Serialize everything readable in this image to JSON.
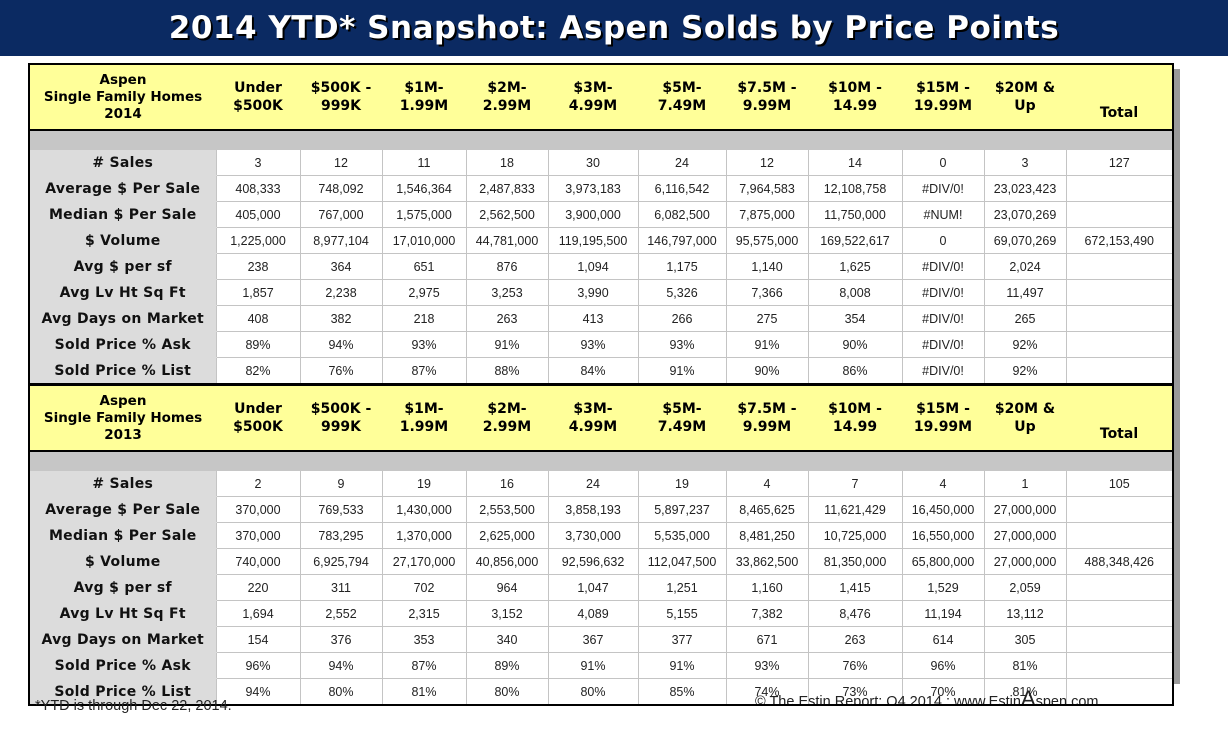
{
  "title": "2014 YTD* Snapshot: Aspen Solds by Price Points",
  "columns": [
    [
      "Under",
      "$500K"
    ],
    [
      "$500K -",
      "999K"
    ],
    [
      "$1M-",
      "1.99M"
    ],
    [
      "$2M-",
      "2.99M"
    ],
    [
      "$3M-",
      "4.99M"
    ],
    [
      "$5M-",
      "7.49M"
    ],
    [
      "$7.5M -",
      "9.99M"
    ],
    [
      "$10M -",
      "14.99"
    ],
    [
      "$15M -",
      "19.99M"
    ],
    [
      "$20M &",
      "Up"
    ],
    [
      "Total"
    ]
  ],
  "sections": [
    {
      "segment": [
        "Aspen",
        "Single Family Homes",
        "2014"
      ],
      "rows": [
        {
          "label": "# Sales",
          "values": [
            "3",
            "12",
            "11",
            "18",
            "30",
            "24",
            "12",
            "14",
            "0",
            "3",
            "127"
          ]
        },
        {
          "label": "Average $ Per Sale",
          "values": [
            "408,333",
            "748,092",
            "1,546,364",
            "2,487,833",
            "3,973,183",
            "6,116,542",
            "7,964,583",
            "12,108,758",
            "#DIV/0!",
            "23,023,423",
            ""
          ]
        },
        {
          "label": "Median $ Per Sale",
          "values": [
            "405,000",
            "767,000",
            "1,575,000",
            "2,562,500",
            "3,900,000",
            "6,082,500",
            "7,875,000",
            "11,750,000",
            "#NUM!",
            "23,070,269",
            ""
          ]
        },
        {
          "label": "$ Volume",
          "values": [
            "1,225,000",
            "8,977,104",
            "17,010,000",
            "44,781,000",
            "119,195,500",
            "146,797,000",
            "95,575,000",
            "169,522,617",
            "0",
            "69,070,269",
            "672,153,490"
          ]
        },
        {
          "label": "Avg $ per sf",
          "values": [
            "238",
            "364",
            "651",
            "876",
            "1,094",
            "1,175",
            "1,140",
            "1,625",
            "#DIV/0!",
            "2,024",
            ""
          ]
        },
        {
          "label": "Avg Lv Ht Sq Ft",
          "values": [
            "1,857",
            "2,238",
            "2,975",
            "3,253",
            "3,990",
            "5,326",
            "7,366",
            "8,008",
            "#DIV/0!",
            "11,497",
            ""
          ]
        },
        {
          "label": "Avg Days on Market",
          "values": [
            "408",
            "382",
            "218",
            "263",
            "413",
            "266",
            "275",
            "354",
            "#DIV/0!",
            "265",
            ""
          ]
        },
        {
          "label": "Sold Price % Ask",
          "values": [
            "89%",
            "94%",
            "93%",
            "91%",
            "93%",
            "93%",
            "91%",
            "90%",
            "#DIV/0!",
            "92%",
            ""
          ]
        },
        {
          "label": "Sold Price % List",
          "values": [
            "82%",
            "76%",
            "87%",
            "88%",
            "84%",
            "91%",
            "90%",
            "86%",
            "#DIV/0!",
            "92%",
            ""
          ]
        }
      ]
    },
    {
      "segment": [
        "Aspen",
        "Single Family Homes",
        "2013"
      ],
      "rows": [
        {
          "label": "# Sales",
          "values": [
            "2",
            "9",
            "19",
            "16",
            "24",
            "19",
            "4",
            "7",
            "4",
            "1",
            "105"
          ]
        },
        {
          "label": "Average $ Per Sale",
          "values": [
            "370,000",
            "769,533",
            "1,430,000",
            "2,553,500",
            "3,858,193",
            "5,897,237",
            "8,465,625",
            "11,621,429",
            "16,450,000",
            "27,000,000",
            ""
          ]
        },
        {
          "label": "Median $ Per Sale",
          "values": [
            "370,000",
            "783,295",
            "1,370,000",
            "2,625,000",
            "3,730,000",
            "5,535,000",
            "8,481,250",
            "10,725,000",
            "16,550,000",
            "27,000,000",
            ""
          ]
        },
        {
          "label": "$ Volume",
          "values": [
            "740,000",
            "6,925,794",
            "27,170,000",
            "40,856,000",
            "92,596,632",
            "112,047,500",
            "33,862,500",
            "81,350,000",
            "65,800,000",
            "27,000,000",
            "488,348,426"
          ]
        },
        {
          "label": "Avg $ per sf",
          "values": [
            "220",
            "311",
            "702",
            "964",
            "1,047",
            "1,251",
            "1,160",
            "1,415",
            "1,529",
            "2,059",
            ""
          ]
        },
        {
          "label": "Avg Lv Ht Sq Ft",
          "values": [
            "1,694",
            "2,552",
            "2,315",
            "3,152",
            "4,089",
            "5,155",
            "7,382",
            "8,476",
            "11,194",
            "13,112",
            ""
          ]
        },
        {
          "label": "Avg Days on Market",
          "values": [
            "154",
            "376",
            "353",
            "340",
            "367",
            "377",
            "671",
            "263",
            "614",
            "305",
            ""
          ]
        },
        {
          "label": "Sold Price % Ask",
          "values": [
            "96%",
            "94%",
            "87%",
            "89%",
            "91%",
            "91%",
            "93%",
            "76%",
            "96%",
            "81%",
            ""
          ]
        },
        {
          "label": "Sold Price % List",
          "values": [
            "94%",
            "80%",
            "81%",
            "80%",
            "80%",
            "85%",
            "74%",
            "73%",
            "70%",
            "81%",
            ""
          ]
        }
      ]
    }
  ],
  "footnote": "*YTD is through Dec 22, 2014.",
  "credit": {
    "pre": "© The Estin Report: Q4 2014 : www.Estin",
    "big": "A",
    "post": "spen.com"
  }
}
